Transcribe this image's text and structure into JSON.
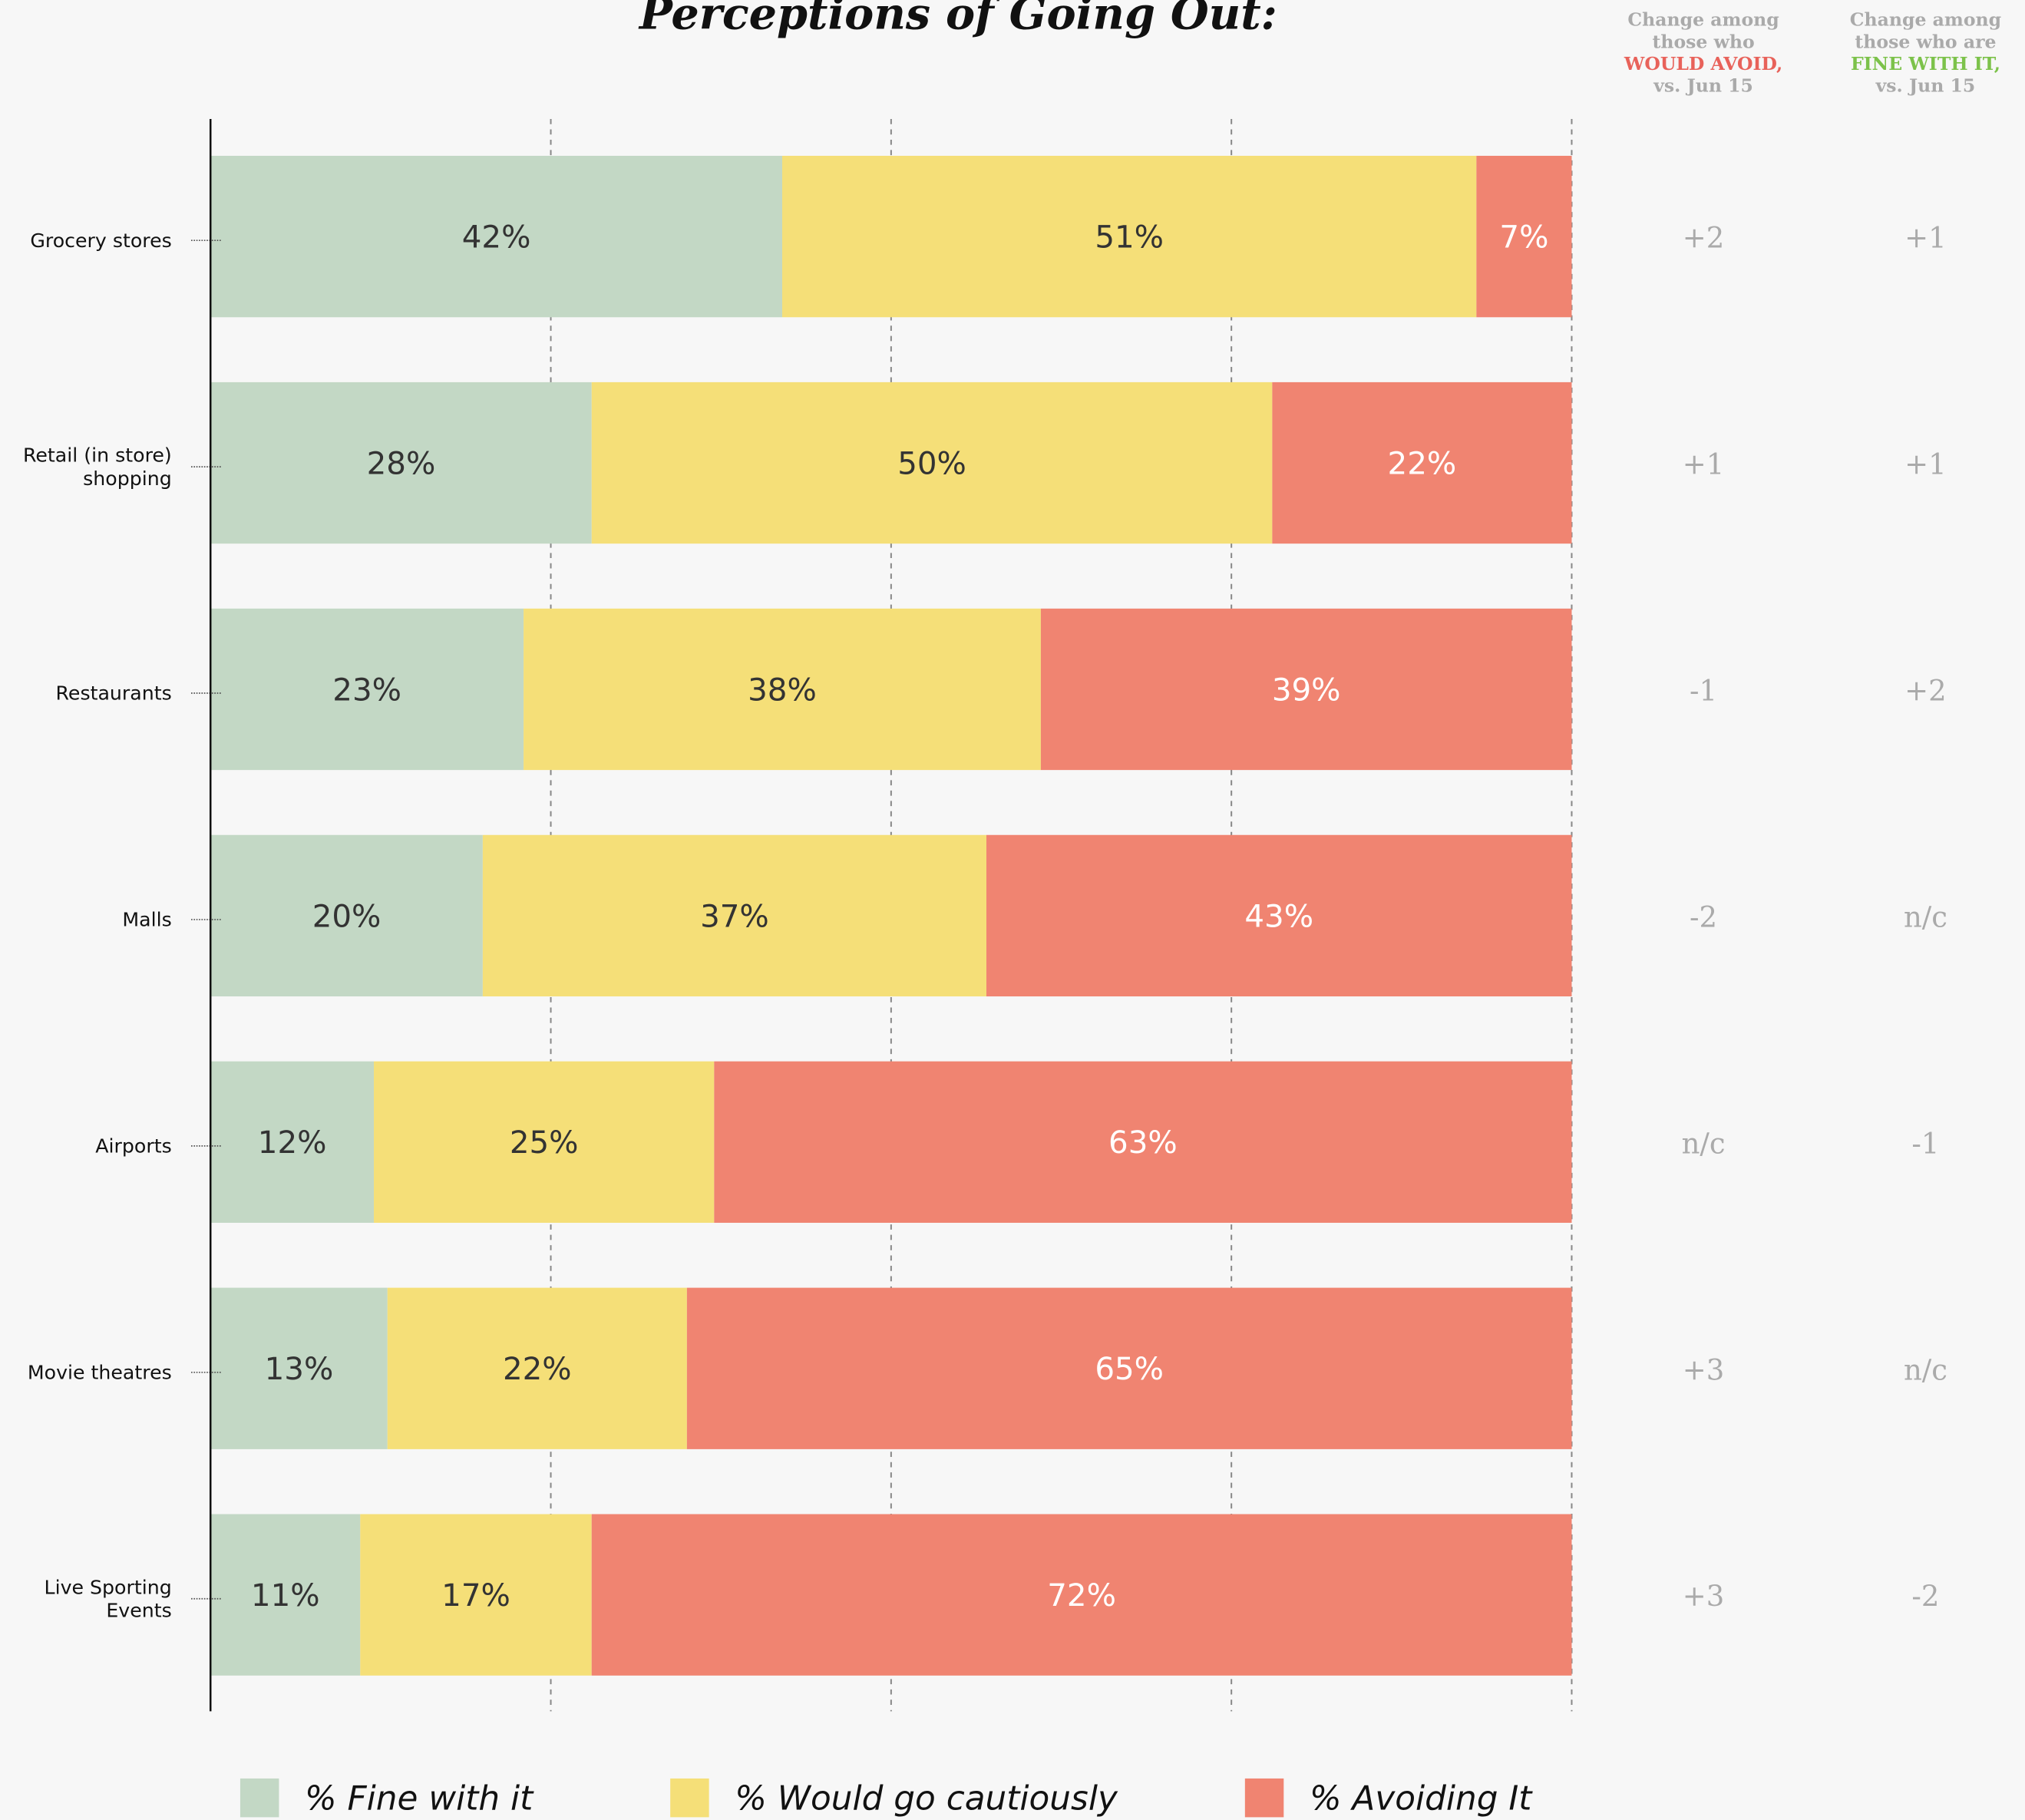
{
  "chart_data": {
    "type": "stacked_bar_horizontal",
    "title": "Perceptions of Going Out:",
    "categories": [
      [
        "Grocery stores"
      ],
      [
        "Retail (in store)",
        "shopping"
      ],
      [
        "Restaurants"
      ],
      [
        "Malls"
      ],
      [
        "Airports"
      ],
      [
        "Movie theatres"
      ],
      [
        "Live Sporting",
        "Events"
      ]
    ],
    "series": [
      {
        "name": "% Fine with it",
        "color": "#c3d8c5",
        "label_color": "#333333",
        "values": [
          42,
          28,
          23,
          20,
          12,
          13,
          11
        ],
        "value_labels": [
          "42%",
          "28%",
          "23%",
          "20%",
          "12%",
          "13%",
          "11%"
        ]
      },
      {
        "name": "% Would go cautiously",
        "color": "#f5df78",
        "label_color": "#333333",
        "values": [
          51,
          50,
          38,
          37,
          25,
          22,
          17
        ],
        "value_labels": [
          "51%",
          "50%",
          "38%",
          "37%",
          "25%",
          "22%",
          "17%"
        ]
      },
      {
        "name": "% Avoiding It",
        "color": "#f08471",
        "label_color": "#ffffff",
        "values": [
          7,
          22,
          39,
          43,
          63,
          65,
          72
        ],
        "value_labels": [
          "7%",
          "22%",
          "39%",
          "43%",
          "63%",
          "65%",
          "72%"
        ]
      }
    ],
    "xlim": [
      0,
      100
    ],
    "xticks": [
      25,
      50,
      75,
      100
    ],
    "grid": true,
    "change_columns": [
      {
        "header_before": [
          "Change among",
          "those who"
        ],
        "header_highlight": "WOULD AVOID,",
        "header_after": "vs. Jun 15",
        "highlight_color": "#e8625a",
        "values": [
          "+2",
          "+1",
          "-1",
          "-2",
          "n/c",
          "+3",
          "+3"
        ]
      },
      {
        "header_before": [
          "Change among",
          "those who are"
        ],
        "header_highlight": "FINE WITH IT,",
        "header_after": "vs. Jun 15",
        "highlight_color": "#7cc24a",
        "values": [
          "+1",
          "+1",
          "+2",
          "n/c",
          "-1",
          "n/c",
          "-2"
        ]
      }
    ]
  }
}
